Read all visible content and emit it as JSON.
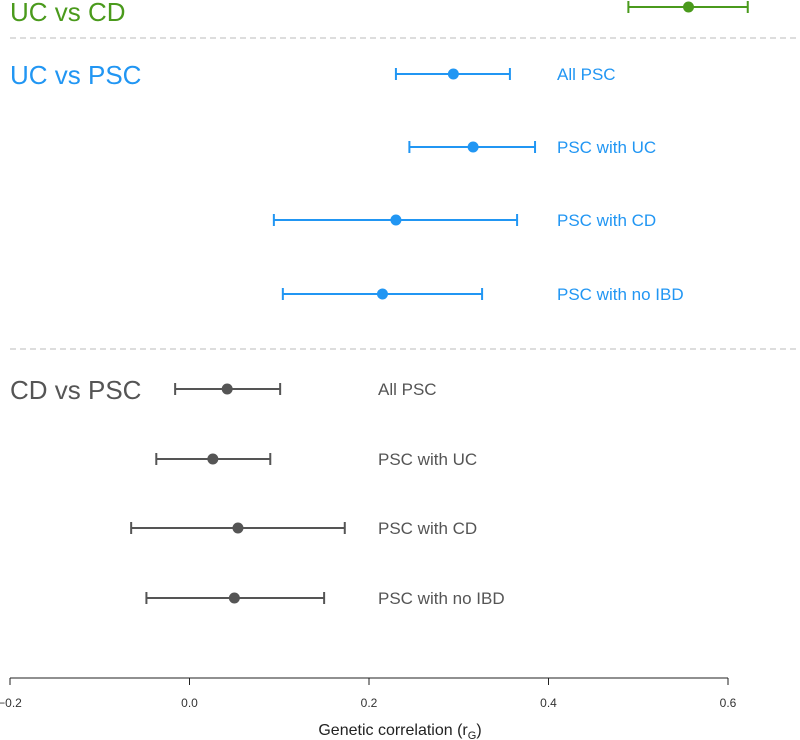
{
  "chart_data": {
    "type": "forest",
    "xlabel": "Genetic correlation (r",
    "xlabel_sub": "G",
    "xlabel_close": ")",
    "xlim": [
      -0.2,
      0.6
    ],
    "x_ticks": [
      "−0.2",
      "0.0",
      "0.2",
      "0.4",
      "0.6"
    ],
    "grid": false,
    "groups": [
      {
        "title": "UC vs CD",
        "color": "#4a9a1c",
        "rows": [
          {
            "label": "",
            "estimate": 0.556,
            "lower": 0.489,
            "upper": 0.622
          }
        ]
      },
      {
        "title": "UC vs PSC",
        "color": "#2196f3",
        "rows": [
          {
            "label": "All PSC",
            "estimate": 0.294,
            "lower": 0.23,
            "upper": 0.357
          },
          {
            "label": "PSC with UC",
            "estimate": 0.316,
            "lower": 0.245,
            "upper": 0.385
          },
          {
            "label": "PSC with CD",
            "estimate": 0.23,
            "lower": 0.094,
            "upper": 0.365
          },
          {
            "label": "PSC with no IBD",
            "estimate": 0.215,
            "lower": 0.104,
            "upper": 0.326
          }
        ]
      },
      {
        "title": "CD vs PSC",
        "color": "#555555",
        "rows": [
          {
            "label": "All PSC",
            "estimate": 0.042,
            "lower": -0.016,
            "upper": 0.101
          },
          {
            "label": "PSC with UC",
            "estimate": 0.026,
            "lower": -0.037,
            "upper": 0.09
          },
          {
            "label": "PSC with CD",
            "estimate": 0.054,
            "lower": -0.065,
            "upper": 0.173
          },
          {
            "label": "PSC with no IBD",
            "estimate": 0.05,
            "lower": -0.048,
            "upper": 0.15
          }
        ]
      }
    ]
  }
}
